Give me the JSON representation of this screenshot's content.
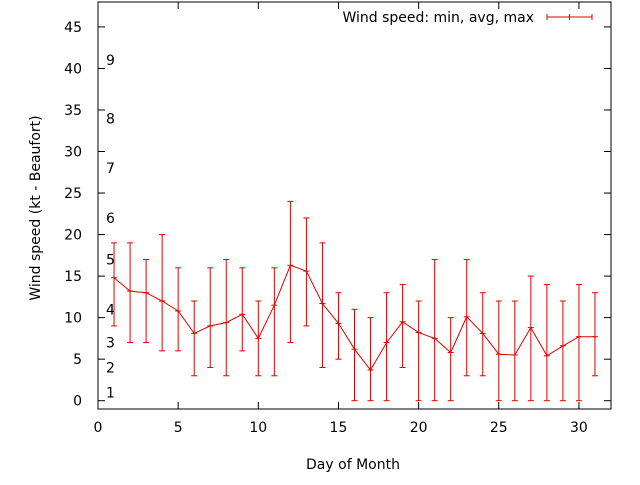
{
  "chart_data": {
    "type": "line",
    "title": "",
    "xlabel": "Day of Month",
    "ylabel": "Wind speed (kt - Beaufort)",
    "xlim": [
      0,
      32
    ],
    "ylim": [
      -1,
      48
    ],
    "x_ticks": [
      0,
      5,
      10,
      15,
      20,
      25,
      30
    ],
    "y_ticks": [
      0,
      5,
      10,
      15,
      20,
      25,
      30,
      35,
      40,
      45
    ],
    "beaufort_labels": [
      {
        "text": "1",
        "y": 1
      },
      {
        "text": "2",
        "y": 4
      },
      {
        "text": "3",
        "y": 7
      },
      {
        "text": "4",
        "y": 11
      },
      {
        "text": "5",
        "y": 17
      },
      {
        "text": "6",
        "y": 22
      },
      {
        "text": "7",
        "y": 28
      },
      {
        "text": "8",
        "y": 34
      },
      {
        "text": "9",
        "y": 41
      }
    ],
    "legend": {
      "position": "top-right"
    },
    "grid": false,
    "series": [
      {
        "name": "Wind speed: min, avg, max",
        "color": "#e00000",
        "x": [
          1,
          2,
          3,
          4,
          5,
          6,
          7,
          8,
          9,
          10,
          11,
          12,
          13,
          14,
          15,
          16,
          17,
          18,
          19,
          20,
          21,
          22,
          23,
          24,
          25,
          26,
          27,
          28,
          29,
          30,
          31
        ],
        "avg": [
          14.8,
          13.2,
          13.0,
          12.0,
          10.8,
          8.1,
          9.0,
          9.4,
          10.4,
          7.5,
          11.5,
          16.3,
          15.6,
          11.7,
          9.3,
          6.2,
          3.7,
          7.0,
          9.5,
          8.2,
          7.5,
          5.8,
          10.1,
          8.1,
          5.6,
          5.5,
          8.8,
          5.4,
          6.6,
          7.7,
          7.7
        ],
        "min": [
          9,
          7,
          7,
          6,
          6,
          3,
          4,
          3,
          6,
          3,
          3,
          7,
          9,
          4,
          5,
          0,
          0,
          0,
          4,
          0,
          0,
          0,
          3,
          3,
          0,
          0,
          0,
          0,
          0,
          0,
          3
        ],
        "max": [
          19,
          19,
          17,
          20,
          16,
          12,
          16,
          17,
          16,
          12,
          16,
          24,
          22,
          19,
          13,
          11,
          10,
          13,
          14,
          12,
          17,
          10,
          17,
          13,
          12,
          12,
          15,
          14,
          12,
          14,
          13
        ]
      }
    ]
  }
}
